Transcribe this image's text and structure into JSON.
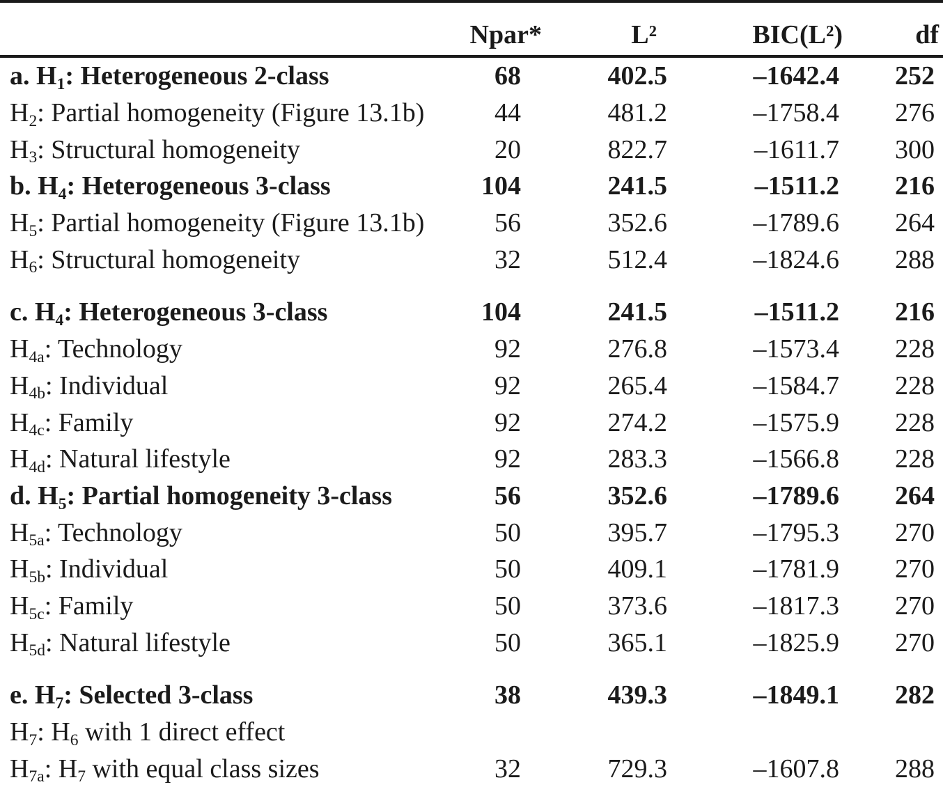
{
  "table": {
    "columns": {
      "npar": "Npar*",
      "l2": "L²",
      "bic": "BIC(L²)",
      "df": "df"
    },
    "rows": [
      {
        "bold": true,
        "gap_before": false,
        "label": [
          {
            "text": "a. H"
          },
          {
            "sub": "1"
          },
          {
            "text": ": Heterogeneous 2-class"
          }
        ],
        "npar": "68",
        "l2": "402.5",
        "bic": "–1642.4",
        "df": "252"
      },
      {
        "bold": false,
        "gap_before": false,
        "label": [
          {
            "text": "H"
          },
          {
            "sub": "2"
          },
          {
            "text": ": Partial homogeneity (Figure 13.1b)"
          }
        ],
        "npar": "44",
        "l2": "481.2",
        "bic": "–1758.4",
        "df": "276"
      },
      {
        "bold": false,
        "gap_before": false,
        "label": [
          {
            "text": "H"
          },
          {
            "sub": "3"
          },
          {
            "text": ": Structural homogeneity"
          }
        ],
        "npar": "20",
        "l2": "822.7",
        "bic": "–1611.7",
        "df": "300"
      },
      {
        "bold": true,
        "gap_before": false,
        "label": [
          {
            "text": "b. H"
          },
          {
            "sub": "4"
          },
          {
            "text": ": Heterogeneous 3-class"
          }
        ],
        "npar": "104",
        "l2": "241.5",
        "bic": "–1511.2",
        "df": "216"
      },
      {
        "bold": false,
        "gap_before": false,
        "label": [
          {
            "text": "H"
          },
          {
            "sub": "5"
          },
          {
            "text": ": Partial homogeneity (Figure 13.1b)"
          }
        ],
        "npar": "56",
        "l2": "352.6",
        "bic": "–1789.6",
        "df": "264"
      },
      {
        "bold": false,
        "gap_before": false,
        "label": [
          {
            "text": "H"
          },
          {
            "sub": "6"
          },
          {
            "text": ": Structural homogeneity"
          }
        ],
        "npar": "32",
        "l2": "512.4",
        "bic": "–1824.6",
        "df": "288"
      },
      {
        "bold": true,
        "gap_before": true,
        "label": [
          {
            "text": "c. H"
          },
          {
            "sub": "4"
          },
          {
            "text": ": Heterogeneous 3-class"
          }
        ],
        "npar": "104",
        "l2": "241.5",
        "bic": "–1511.2",
        "df": "216"
      },
      {
        "bold": false,
        "gap_before": false,
        "label": [
          {
            "text": "H"
          },
          {
            "sub": "4a"
          },
          {
            "text": ": Technology"
          }
        ],
        "npar": "92",
        "l2": "276.8",
        "bic": "–1573.4",
        "df": "228"
      },
      {
        "bold": false,
        "gap_before": false,
        "label": [
          {
            "text": "H"
          },
          {
            "sub": "4b"
          },
          {
            "text": ": Individual"
          }
        ],
        "npar": "92",
        "l2": "265.4",
        "bic": "–1584.7",
        "df": "228"
      },
      {
        "bold": false,
        "gap_before": false,
        "label": [
          {
            "text": "H"
          },
          {
            "sub": "4c"
          },
          {
            "text": ": Family"
          }
        ],
        "npar": "92",
        "l2": "274.2",
        "bic": "–1575.9",
        "df": "228"
      },
      {
        "bold": false,
        "gap_before": false,
        "label": [
          {
            "text": "H"
          },
          {
            "sub": "4d"
          },
          {
            "text": ": Natural lifestyle"
          }
        ],
        "npar": "92",
        "l2": "283.3",
        "bic": "–1566.8",
        "df": "228"
      },
      {
        "bold": true,
        "gap_before": false,
        "label": [
          {
            "text": "d. H"
          },
          {
            "sub": "5"
          },
          {
            "text": ": Partial homogeneity 3-class"
          }
        ],
        "npar": "56",
        "l2": "352.6",
        "bic": "–1789.6",
        "df": "264"
      },
      {
        "bold": false,
        "gap_before": false,
        "label": [
          {
            "text": "H"
          },
          {
            "sub": "5a"
          },
          {
            "text": ": Technology"
          }
        ],
        "npar": "50",
        "l2": "395.7",
        "bic": "–1795.3",
        "df": "270"
      },
      {
        "bold": false,
        "gap_before": false,
        "label": [
          {
            "text": "H"
          },
          {
            "sub": "5b"
          },
          {
            "text": ": Individual"
          }
        ],
        "npar": "50",
        "l2": "409.1",
        "bic": "–1781.9",
        "df": "270"
      },
      {
        "bold": false,
        "gap_before": false,
        "label": [
          {
            "text": "H"
          },
          {
            "sub": "5c"
          },
          {
            "text": ": Family"
          }
        ],
        "npar": "50",
        "l2": "373.6",
        "bic": "–1817.3",
        "df": "270"
      },
      {
        "bold": false,
        "gap_before": false,
        "label": [
          {
            "text": "H"
          },
          {
            "sub": "5d"
          },
          {
            "text": ": Natural lifestyle"
          }
        ],
        "npar": "50",
        "l2": "365.1",
        "bic": "–1825.9",
        "df": "270"
      },
      {
        "bold": true,
        "gap_before": true,
        "label": [
          {
            "text": "e. H"
          },
          {
            "sub": "7"
          },
          {
            "text": ": Selected 3-class"
          }
        ],
        "npar": "38",
        "l2": "439.3",
        "bic": "–1849.1",
        "df": "282"
      },
      {
        "bold": false,
        "gap_before": false,
        "label": [
          {
            "text": "H"
          },
          {
            "sub": "7"
          },
          {
            "text": ": H"
          },
          {
            "sub": "6"
          },
          {
            "text": " with 1 direct effect"
          }
        ],
        "npar": "",
        "l2": "",
        "bic": "",
        "df": ""
      },
      {
        "bold": false,
        "gap_before": false,
        "label": [
          {
            "text": "H"
          },
          {
            "sub": "7a"
          },
          {
            "text": ": H"
          },
          {
            "sub": "7"
          },
          {
            "text": " with equal class sizes"
          }
        ],
        "npar": "32",
        "l2": "729.3",
        "bic": "–1607.8",
        "df": "288"
      }
    ]
  }
}
